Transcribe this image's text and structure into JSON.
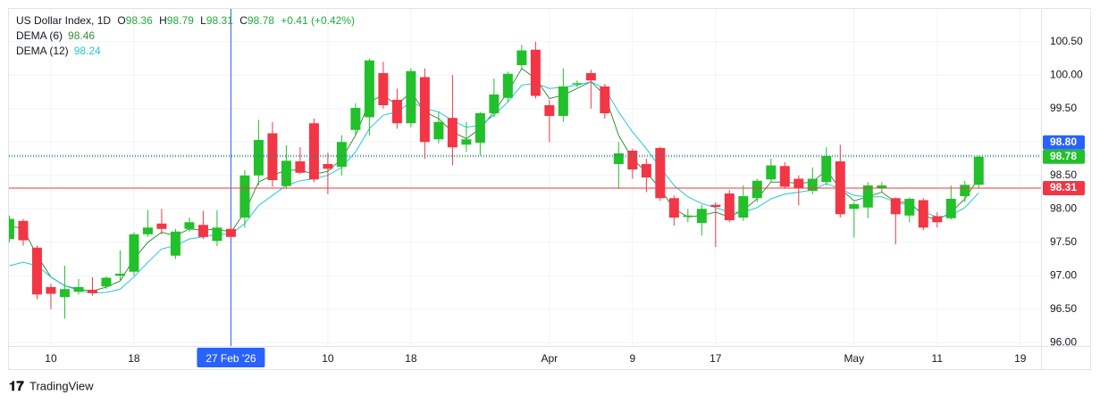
{
  "chart_data": {
    "type": "candlestick",
    "title": "US Dollar Index, 1D",
    "change": "+0.41 (+0.42%)",
    "ohlc_letters": [
      "O",
      "H",
      "L",
      "C"
    ],
    "up_color": "#22c02a",
    "down_color": "#f23645",
    "open": [
      97.55,
      97.82,
      97.42,
      96.83,
      96.68,
      96.76,
      96.79,
      96.84,
      97.0,
      97.06,
      97.62,
      97.78,
      97.3,
      97.7,
      97.76,
      97.52,
      97.7,
      97.87,
      98.5,
      99.13,
      98.34,
      98.71,
      99.28,
      98.67,
      98.63,
      99.18,
      99.37,
      100.03,
      99.63,
      99.28,
      99.97,
      99.04,
      99.36,
      98.96,
      98.99,
      99.43,
      99.66,
      100.15,
      100.38,
      99.55,
      99.39,
      99.86,
      100.03,
      99.83,
      98.67,
      98.87,
      98.67,
      98.91,
      98.16,
      97.88,
      97.79,
      98.06,
      98.23,
      97.87,
      98.16,
      98.44,
      98.64,
      98.45,
      98.27,
      98.4,
      98.71,
      98.0,
      98.02,
      98.31,
      98.16,
      97.9,
      98.13,
      97.89,
      97.86,
      98.19,
      98.36
    ],
    "high": [
      97.9,
      97.85,
      97.45,
      96.88,
      97.15,
      96.95,
      96.98,
      96.99,
      97.38,
      97.65,
      97.98,
      98.0,
      97.7,
      97.87,
      97.97,
      97.98,
      97.75,
      98.58,
      99.33,
      99.3,
      98.95,
      98.92,
      99.35,
      98.84,
      99.1,
      99.58,
      100.25,
      100.2,
      99.8,
      100.1,
      100.1,
      99.45,
      100.0,
      99.3,
      99.45,
      99.95,
      100.05,
      100.45,
      100.5,
      99.63,
      100.1,
      99.92,
      100.08,
      99.87,
      99.0,
      98.9,
      98.75,
      98.93,
      98.2,
      98.0,
      98.06,
      98.1,
      98.28,
      98.35,
      98.45,
      98.75,
      98.7,
      98.5,
      98.62,
      98.92,
      98.96,
      98.1,
      98.4,
      98.4,
      98.17,
      98.17,
      98.16,
      97.95,
      98.35,
      98.42,
      98.79
    ],
    "low": [
      97.5,
      97.45,
      96.65,
      96.5,
      96.36,
      96.72,
      96.7,
      96.8,
      96.92,
      97.0,
      97.58,
      97.62,
      97.25,
      97.66,
      97.55,
      97.44,
      97.55,
      97.72,
      98.35,
      98.33,
      98.3,
      98.52,
      98.4,
      98.22,
      98.5,
      99.1,
      99.1,
      99.5,
      99.2,
      99.22,
      98.75,
      98.98,
      98.65,
      98.85,
      98.8,
      99.37,
      99.6,
      100.08,
      99.65,
      99.0,
      99.3,
      99.82,
      99.5,
      99.35,
      98.3,
      98.45,
      98.25,
      98.12,
      97.75,
      97.8,
      97.6,
      97.43,
      97.8,
      97.82,
      98.1,
      98.4,
      98.3,
      98.05,
      98.22,
      98.35,
      97.87,
      97.57,
      97.86,
      98.25,
      97.47,
      97.8,
      97.68,
      97.72,
      97.84,
      98.1,
      98.31
    ],
    "close": [
      97.85,
      97.53,
      96.72,
      96.73,
      96.8,
      96.83,
      96.74,
      96.97,
      97.03,
      97.62,
      97.72,
      97.7,
      97.66,
      97.8,
      97.58,
      97.72,
      97.58,
      98.5,
      99.03,
      98.43,
      98.72,
      98.54,
      98.44,
      98.6,
      99.0,
      99.51,
      100.22,
      99.55,
      99.28,
      100.06,
      99.0,
      99.3,
      98.92,
      99.04,
      99.43,
      99.71,
      100.02,
      100.37,
      99.69,
      99.39,
      99.83,
      99.88,
      99.92,
      99.43,
      98.83,
      98.59,
      98.47,
      98.16,
      97.87,
      97.9,
      98.0,
      98.03,
      97.83,
      98.19,
      98.42,
      98.65,
      98.33,
      98.31,
      98.45,
      98.79,
      97.92,
      98.07,
      98.35,
      98.35,
      97.92,
      98.15,
      97.72,
      97.8,
      98.15,
      98.36,
      98.78
    ],
    "series": [
      {
        "name": "DEMA (6)",
        "color": "#388e3c",
        "values": [
          97.75,
          97.7,
          97.3,
          96.98,
          96.85,
          96.8,
          96.77,
          96.83,
          96.92,
          97.25,
          97.5,
          97.65,
          97.6,
          97.7,
          97.68,
          97.7,
          97.65,
          97.95,
          98.4,
          98.5,
          98.58,
          98.58,
          98.52,
          98.56,
          98.75,
          99.1,
          99.6,
          99.7,
          99.55,
          99.75,
          99.45,
          99.35,
          99.15,
          99.05,
          99.2,
          99.45,
          99.75,
          100.1,
          99.95,
          99.65,
          99.7,
          99.8,
          99.9,
          99.7,
          99.1,
          98.75,
          98.55,
          98.3,
          98.0,
          97.88,
          97.9,
          97.95,
          97.88,
          97.98,
          98.15,
          98.4,
          98.4,
          98.38,
          98.4,
          98.58,
          98.3,
          98.12,
          98.18,
          98.25,
          98.1,
          98.1,
          97.9,
          97.83,
          97.95,
          98.15,
          98.46
        ]
      },
      {
        "name": "DEMA (12)",
        "color": "#26c6da",
        "values": [
          97.15,
          97.2,
          97.15,
          96.98,
          96.85,
          96.78,
          96.74,
          96.75,
          96.8,
          96.98,
          97.2,
          97.4,
          97.45,
          97.55,
          97.58,
          97.62,
          97.62,
          97.78,
          98.05,
          98.2,
          98.35,
          98.42,
          98.45,
          98.5,
          98.62,
          98.85,
          99.2,
          99.4,
          99.45,
          99.6,
          99.5,
          99.45,
          99.32,
          99.22,
          99.25,
          99.4,
          99.6,
          99.85,
          99.88,
          99.8,
          99.82,
          99.85,
          99.9,
          99.8,
          99.45,
          99.15,
          98.9,
          98.62,
          98.35,
          98.18,
          98.08,
          98.02,
          97.95,
          97.95,
          98.02,
          98.15,
          98.22,
          98.25,
          98.28,
          98.38,
          98.3,
          98.2,
          98.18,
          98.18,
          98.1,
          98.05,
          97.95,
          97.88,
          97.9,
          98.02,
          98.24
        ]
      }
    ],
    "xlim": [
      -0.03,
      74.5
    ],
    "xticks": [
      {
        "value": 3,
        "label": "10"
      },
      {
        "value": 9,
        "label": "18"
      },
      {
        "value": 16,
        "label": "27 Feb '26"
      },
      {
        "value": 23,
        "label": "10"
      },
      {
        "value": 29,
        "label": "18"
      },
      {
        "value": 39,
        "label": "Apr"
      },
      {
        "value": 45,
        "label": "9"
      },
      {
        "value": 51,
        "label": "17"
      },
      {
        "value": 61,
        "label": "May"
      },
      {
        "value": 67,
        "label": "11"
      },
      {
        "value": 73,
        "label": "19"
      }
    ],
    "crosshair_x": 16,
    "ylim": [
      95.95,
      100.99
    ],
    "yticks": [
      {
        "value": 96,
        "label": "96.00"
      },
      {
        "value": 96.5,
        "label": "96.50"
      },
      {
        "value": 97,
        "label": "97.00"
      },
      {
        "value": 97.5,
        "label": "97.50"
      },
      {
        "value": 98,
        "label": "98.00"
      },
      {
        "value": 98.5,
        "label": "98.50"
      },
      {
        "value": 99,
        "label": "99.00"
      },
      {
        "value": 99.5,
        "label": "99.50"
      },
      {
        "value": 100,
        "label": "100.00"
      },
      {
        "value": 100.5,
        "label": "100.50"
      }
    ],
    "hlines": [
      {
        "value": 98.8,
        "label": "98.80",
        "color": "#2962ff"
      },
      {
        "value": 98.31,
        "label": "98.31",
        "color": "#f23645"
      }
    ],
    "grid": true,
    "brand": "TradingView"
  }
}
